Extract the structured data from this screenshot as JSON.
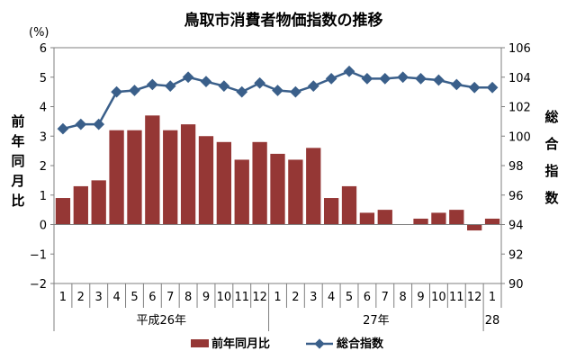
{
  "chart_data": {
    "type": "bar+line",
    "title": "鳥取市消費者物価指数の推移",
    "left_axis": {
      "unit": "(%)",
      "label_chars": [
        "前",
        "年",
        "同",
        "月",
        "比"
      ],
      "ylim": [
        -2,
        6
      ],
      "ticks": [
        "6",
        "5",
        "4",
        "3",
        "2",
        "1",
        "0",
        "−1",
        "−2"
      ]
    },
    "right_axis": {
      "label_chars": [
        "総",
        "合",
        "指",
        "数"
      ],
      "ylim": [
        90,
        106
      ],
      "ticks": [
        "106",
        "104",
        "102",
        "100",
        "98",
        "96",
        "94",
        "92",
        "90"
      ]
    },
    "categories": [
      "1",
      "2",
      "3",
      "4",
      "5",
      "6",
      "7",
      "8",
      "9",
      "10",
      "11",
      "12",
      "1",
      "2",
      "3",
      "4",
      "5",
      "6",
      "7",
      "8",
      "9",
      "10",
      "11",
      "12",
      "1"
    ],
    "year_groups": [
      {
        "label": "平成26年",
        "start": 0,
        "end": 11
      },
      {
        "label": "27年",
        "start": 12,
        "end": 23
      },
      {
        "label": "28",
        "start": 24,
        "end": 24
      }
    ],
    "series": [
      {
        "name": "前年同月比",
        "type": "bar",
        "axis": "left",
        "color": "#953735",
        "values": [
          0.9,
          1.3,
          1.5,
          3.2,
          3.2,
          3.7,
          3.2,
          3.4,
          3.0,
          2.8,
          2.2,
          2.8,
          2.4,
          2.2,
          2.6,
          0.9,
          1.3,
          0.4,
          0.5,
          0.0,
          0.2,
          0.4,
          0.5,
          -0.2,
          0.2
        ]
      },
      {
        "name": "総合指数",
        "type": "line",
        "axis": "right",
        "color": "#3A5F8A",
        "values": [
          100.5,
          100.8,
          100.8,
          103.0,
          103.1,
          103.5,
          103.4,
          104.0,
          103.7,
          103.4,
          103.0,
          103.6,
          103.1,
          103.0,
          103.4,
          103.9,
          104.4,
          103.9,
          103.9,
          104.0,
          103.9,
          103.8,
          103.5,
          103.3,
          103.3
        ]
      }
    ],
    "legend": {
      "placement": "bottom",
      "bar": "前年同月比",
      "line": "総合指数"
    },
    "grid": false
  }
}
